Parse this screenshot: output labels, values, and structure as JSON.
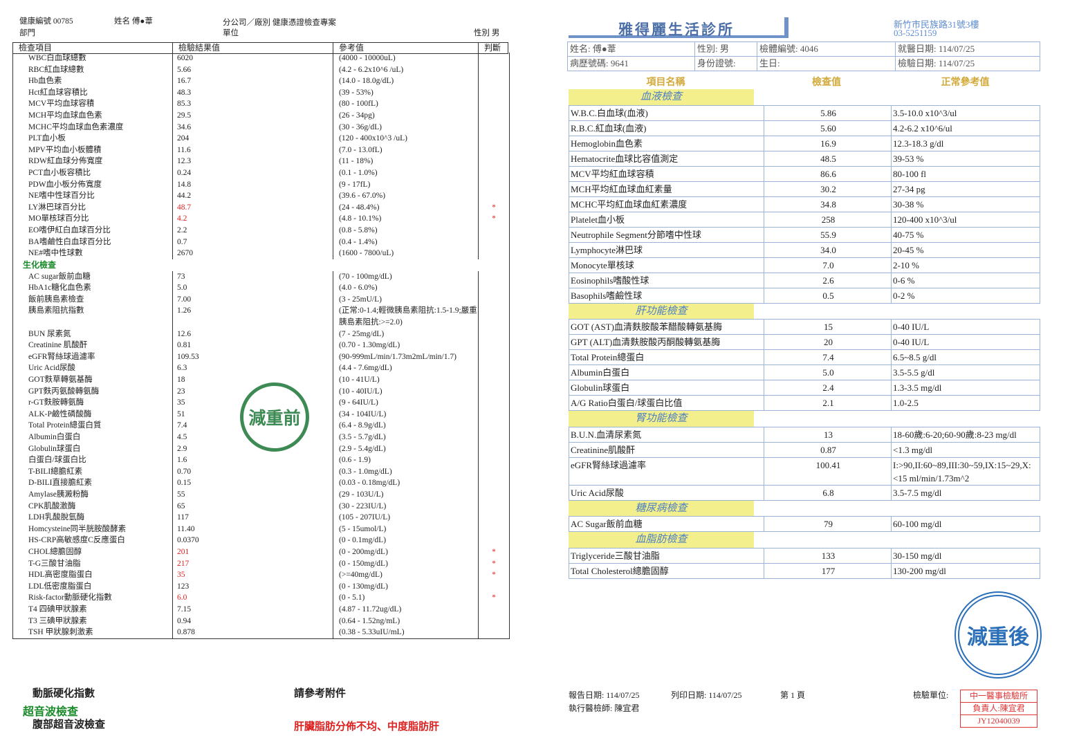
{
  "left_report": {
    "header": {
      "health_no": "健康編號 00785",
      "name": "姓名 傅●葦",
      "company": "分公司／廠別 健康憑證檢查專案",
      "department": "部門",
      "unit": "單位",
      "gender": "性別 男"
    },
    "columns": [
      "檢查項目",
      "檢驗結果值",
      "參考值",
      "判斷"
    ],
    "rows": [
      {
        "item": "WBC白血球總數",
        "result": "6020",
        "reference": "(4000 - 10000uL)"
      },
      {
        "item": "RBC紅血球總數",
        "result": "5.66",
        "reference": "(4.2 - 6.2x10^6 /uL)"
      },
      {
        "item": "Hb血色素",
        "result": "16.7",
        "reference": "(14.0 - 18.0g/dL)"
      },
      {
        "item": "Hct紅血球容積比",
        "result": "48.3",
        "reference": "(39 - 53%)"
      },
      {
        "item": "MCV平均血球容積",
        "result": "85.3",
        "reference": "(80 - 100fL)"
      },
      {
        "item": "MCH平均血球血色素",
        "result": "29.5",
        "reference": "(26 - 34pg)"
      },
      {
        "item": "MCHC平均血球血色素濃度",
        "result": "34.6",
        "reference": "(30 - 36g/dL)"
      },
      {
        "item": "PLT血小板",
        "result": "204",
        "reference": "(120 - 400x10^3 /uL)"
      },
      {
        "item": "MPV平均血小板體積",
        "result": "11.6",
        "reference": "(7.0 - 13.0fL)"
      },
      {
        "item": "RDW紅血球分佈寬度",
        "result": "12.3",
        "reference": "(11 - 18%)"
      },
      {
        "item": "PCT血小板容積比",
        "result": "0.24",
        "reference": "(0.1 - 1.0%)"
      },
      {
        "item": "PDW血小板分佈寬度",
        "result": "14.8",
        "reference": "(9 - 17fL)"
      },
      {
        "item": "NE嗜中性球百分比",
        "result": "44.2",
        "reference": "(39.6 - 67.0%)"
      },
      {
        "item": "LY淋巴球百分比",
        "result": "48.7",
        "reference": "(24 - 48.4%)",
        "flag": "*"
      },
      {
        "item": "MO單核球百分比",
        "result": "4.2",
        "reference": "(4.8 - 10.1%)",
        "flag": "*"
      },
      {
        "item": "EO嗜伊紅白血球百分比",
        "result": "2.2",
        "reference": "(0.8 - 5.8%)"
      },
      {
        "item": "BA嗜鹼性白血球百分比",
        "result": "0.7",
        "reference": "(0.4 - 1.4%)"
      },
      {
        "item": "NE#嗜中性球數",
        "result": "2670",
        "reference": "(1600 - 7800/uL)"
      },
      {
        "section": "生化檢查"
      },
      {
        "item": "AC sugar飯前血糖",
        "result": "73",
        "reference": "(70 - 100mg/dL)"
      },
      {
        "item": "HbA1c糖化血色素",
        "result": "5.0",
        "reference": "(4.0 - 6.0%)"
      },
      {
        "item": "飯前胰島素檢查",
        "result": "7.00",
        "reference": "(3 - 25mU/L)"
      },
      {
        "item": "胰島素阻抗指數",
        "result": "1.26",
        "reference": "(正常:0-1.4;輕微胰島素阻抗:1.5-1.9;嚴重胰島素阻抗:>=2.0)"
      },
      {
        "item": "BUN 尿素氮",
        "result": "12.6",
        "reference": "(7 - 25mg/dL)"
      },
      {
        "item": "Creatinine 肌酸酐",
        "result": "0.81",
        "reference": "(0.70 - 1.30mg/dL)"
      },
      {
        "item": "eGFR腎絲球過濾率",
        "result": "109.53",
        "reference": "(90-999mL/min/1.73m2mL/min/1.7)"
      },
      {
        "item": "Uric Acid尿酸",
        "result": "6.3",
        "reference": "(4.4 - 7.6mg/dL)"
      },
      {
        "item": "GOT麩草轉氨基酶",
        "result": "18",
        "reference": "(10 - 41U/L)"
      },
      {
        "item": "GPT麩丙氨酸轉氨酶",
        "result": "23",
        "reference": "(10 - 40IU/L)"
      },
      {
        "item": "r-GT麩胺轉氨酶",
        "result": "35",
        "reference": "(9 - 64IU/L)"
      },
      {
        "item": "ALK-P鹼性磷酸酶",
        "result": "51",
        "reference": "(34 - 104IU/L)"
      },
      {
        "item": "Total Protein總蛋白質",
        "result": "7.4",
        "reference": "(6.4 - 8.9g/dL)"
      },
      {
        "item": "Albumin白蛋白",
        "result": "4.5",
        "reference": "(3.5 - 5.7g/dL)"
      },
      {
        "item": "Globulin球蛋白",
        "result": "2.9",
        "reference": "(2.9 - 5.4g/dL)"
      },
      {
        "item": "白蛋白/球蛋白比",
        "result": "1.6",
        "reference": "(0.6 - 1.9)"
      },
      {
        "item": "T-BILI總膽紅素",
        "result": "0.70",
        "reference": "(0.3 - 1.0mg/dL)"
      },
      {
        "item": "D-BILI直接膽紅素",
        "result": "0.15",
        "reference": "(0.03 - 0.18mg/dL)"
      },
      {
        "item": "Amylase胰澱粉酶",
        "result": "55",
        "reference": "(29 - 103U/L)"
      },
      {
        "item": "CPK肌酸激酶",
        "result": "65",
        "reference": "(30 - 223IU/L)"
      },
      {
        "item": "LDH乳酸脫氫酶",
        "result": "117",
        "reference": "(105 - 207IU/L)"
      },
      {
        "item": "Homcysteine同半胱胺酸酵素",
        "result": "11.40",
        "reference": "(5 - 15umol/L)"
      },
      {
        "item": "HS-CRP高敏感度C反應蛋白",
        "result": "0.0370",
        "reference": "(0 - 0.1mg/dL)"
      },
      {
        "item": "CHOL總膽固醇",
        "result": "201",
        "reference": "(0 - 200mg/dL)",
        "flag": "*"
      },
      {
        "item": "T-G三酸甘油脂",
        "result": "217",
        "reference": "(0 - 150mg/dL)",
        "flag": "*"
      },
      {
        "item": "HDL高密度脂蛋白",
        "result": "35",
        "reference": "(>=40mg/dL)",
        "flag": "*"
      },
      {
        "item": "LDL低密度脂蛋白",
        "result": "123",
        "reference": "(0 - 130mg/dL)"
      },
      {
        "item": "Risk-factor動脈硬化指數",
        "result": "6.0",
        "reference": "(0 - 5.1)",
        "flag": "*"
      },
      {
        "item": "T4 四碘甲狀腺素",
        "result": "7.15",
        "reference": "(4.87 - 11.72ug/dL)"
      },
      {
        "item": "T3 三碘甲狀腺素",
        "result": "0.94",
        "reference": "(0.64 - 1.52ng/mL)"
      },
      {
        "item": "TSH 甲狀腺刺激素",
        "result": "0.878",
        "reference": "(0.38 - 5.33uIU/mL)"
      }
    ],
    "stamp": "減重前",
    "footer": {
      "arteriosclerosis": "動脈硬化指數",
      "see_attachment": "請參考附件",
      "ultrasound": "超音波檢查",
      "abdominal_ultrasound": "腹部超音波檢查",
      "finding": "肝臟脂肪分佈不均、中度脂肪肝"
    }
  },
  "right_report": {
    "title": "雅得麗生活診所",
    "address": "新竹市民族路31號3樓",
    "phone": "03-5251159",
    "info": [
      [
        "姓名: 傅●葦",
        "性別: 男",
        "檢體編號: 4046",
        "就醫日期: 114/07/25"
      ],
      [
        "病歷號碼: 9641",
        "身份證號:",
        "生日:",
        "檢驗日期: 114/07/25"
      ]
    ],
    "columns": [
      "項目名稱",
      "檢查值",
      "正常參考值"
    ],
    "sections": [
      {
        "title": "血液檢查",
        "rows": [
          [
            "W.B.C.白血球(血液)",
            "5.86",
            "3.5-10.0 x10^3/ul"
          ],
          [
            "R.B.C.紅血球(血液)",
            "5.60",
            "4.2-6.2 x10^6/ul"
          ],
          [
            "Hemoglobin血色素",
            "16.9",
            "12.3-18.3 g/dl"
          ],
          [
            "Hematocrite血球比容值測定",
            "48.5",
            "39-53 %"
          ],
          [
            "MCV平均紅血球容積",
            "86.6",
            "80-100 fl"
          ],
          [
            "MCH平均紅血球血紅素量",
            "30.2",
            "27-34 pg"
          ],
          [
            "MCHC平均紅血球血紅素濃度",
            "34.8",
            "30-38 %"
          ],
          [
            "Platelet血小板",
            "258",
            "120-400 x10^3/ul"
          ],
          [
            "Neutrophile Segment分節嗜中性球",
            "55.9",
            "40-75 %"
          ],
          [
            "Lymphocyte淋巴球",
            "34.0",
            "20-45 %"
          ],
          [
            "Monocyte單核球",
            "7.0",
            "2-10 %"
          ],
          [
            "Eosinophils嗜酸性球",
            "2.6",
            "0-6 %"
          ],
          [
            "Basophils嗜鹼性球",
            "0.5",
            "0-2 %"
          ]
        ]
      },
      {
        "title": "肝功能檢查",
        "rows": [
          [
            "GOT (AST)血清麩胺酸苯醋酸轉氨基脢",
            "15",
            "0-40 IU/L"
          ],
          [
            "GPT (ALT)血清麩胺酸丙酮酸轉氨基脢",
            "20",
            "0-40 IU/L"
          ],
          [
            "Total Protein總蛋白",
            "7.4",
            "6.5~8.5 g/dl"
          ],
          [
            "Albumin白蛋白",
            "5.0",
            "3.5-5.5 g/dl"
          ],
          [
            "Globulin球蛋白",
            "2.4",
            "1.3-3.5 mg/dl"
          ],
          [
            "A/G Ratio白蛋白/球蛋白比值",
            "2.1",
            "1.0-2.5"
          ]
        ]
      },
      {
        "title": "腎功能檢查",
        "rows": [
          [
            "B.U.N.血清尿素氮",
            "13",
            "18-60歲:6-20;60-90歲:8-23 mg/dl"
          ],
          [
            "Creatinine肌酸酐",
            "0.87",
            "<1.3 mg/dl"
          ],
          [
            "eGFR腎絲球過濾率",
            "100.41",
            "I:>90,II:60~89,III:30~59,IX:15~29,X:<15 ml/min/1.73m^2"
          ],
          [
            "Uric Acid尿酸",
            "6.8",
            "3.5-7.5 mg/dl"
          ]
        ]
      },
      {
        "title": "糖尿病檢查",
        "rows": [
          [
            "AC Sugar飯前血糖",
            "79",
            "60-100 mg/dl"
          ]
        ]
      },
      {
        "title": "血脂肪檢查",
        "rows": [
          [
            "Triglyceride三酸甘油脂",
            "133",
            "30-150 mg/dl"
          ],
          [
            "Total Cholesterol總膽固醇",
            "177",
            "130-200 mg/dl"
          ]
        ]
      }
    ],
    "stamp": "減重後",
    "footer": {
      "report_date": "報告日期: 114/07/25",
      "print_date": "列印日期: 114/07/25",
      "page": "第 1 頁",
      "lab_label": "檢驗單位:",
      "lab_name": "中一醫事檢驗所",
      "person_in_charge": "負責人:陳宜君",
      "lab_code": "JY12040039",
      "technician": "執行醫檢師: 陳宜君"
    }
  }
}
